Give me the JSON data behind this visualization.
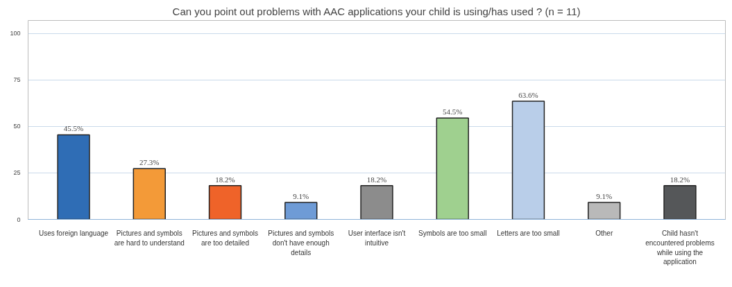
{
  "chart_data": {
    "type": "bar",
    "title": "Can you point out problems with AAC applications your child is using/has used ? (n = 11)",
    "categories": [
      "Uses foreign language",
      "Pictures and symbols are hard to understand",
      "Pictures and symbols are too detailed",
      "Pictures and symbols  don't have enough details",
      "User interface isn't intuitive",
      "Symbols are too small",
      "Letters are too small",
      "Other",
      "Child hasn't encountered problems while using the application"
    ],
    "values": [
      45.5,
      27.3,
      18.2,
      9.1,
      18.2,
      54.5,
      63.6,
      9.1,
      18.2
    ],
    "colors": [
      "#2f6db5",
      "#f39a38",
      "#ef6329",
      "#6e9bd6",
      "#8c8c8c",
      "#9fd08f",
      "#b9cee9",
      "#b9b9b9",
      "#555759"
    ],
    "value_labels": [
      "45.5%",
      "27.3%",
      "18.2%",
      "9.1%",
      "18.2%",
      "54.5%",
      "63.6%",
      "9.1%",
      "18.2%"
    ],
    "ylim": [
      0,
      107
    ],
    "yticks": [
      0,
      25,
      50,
      75,
      100
    ],
    "grid": "y"
  }
}
